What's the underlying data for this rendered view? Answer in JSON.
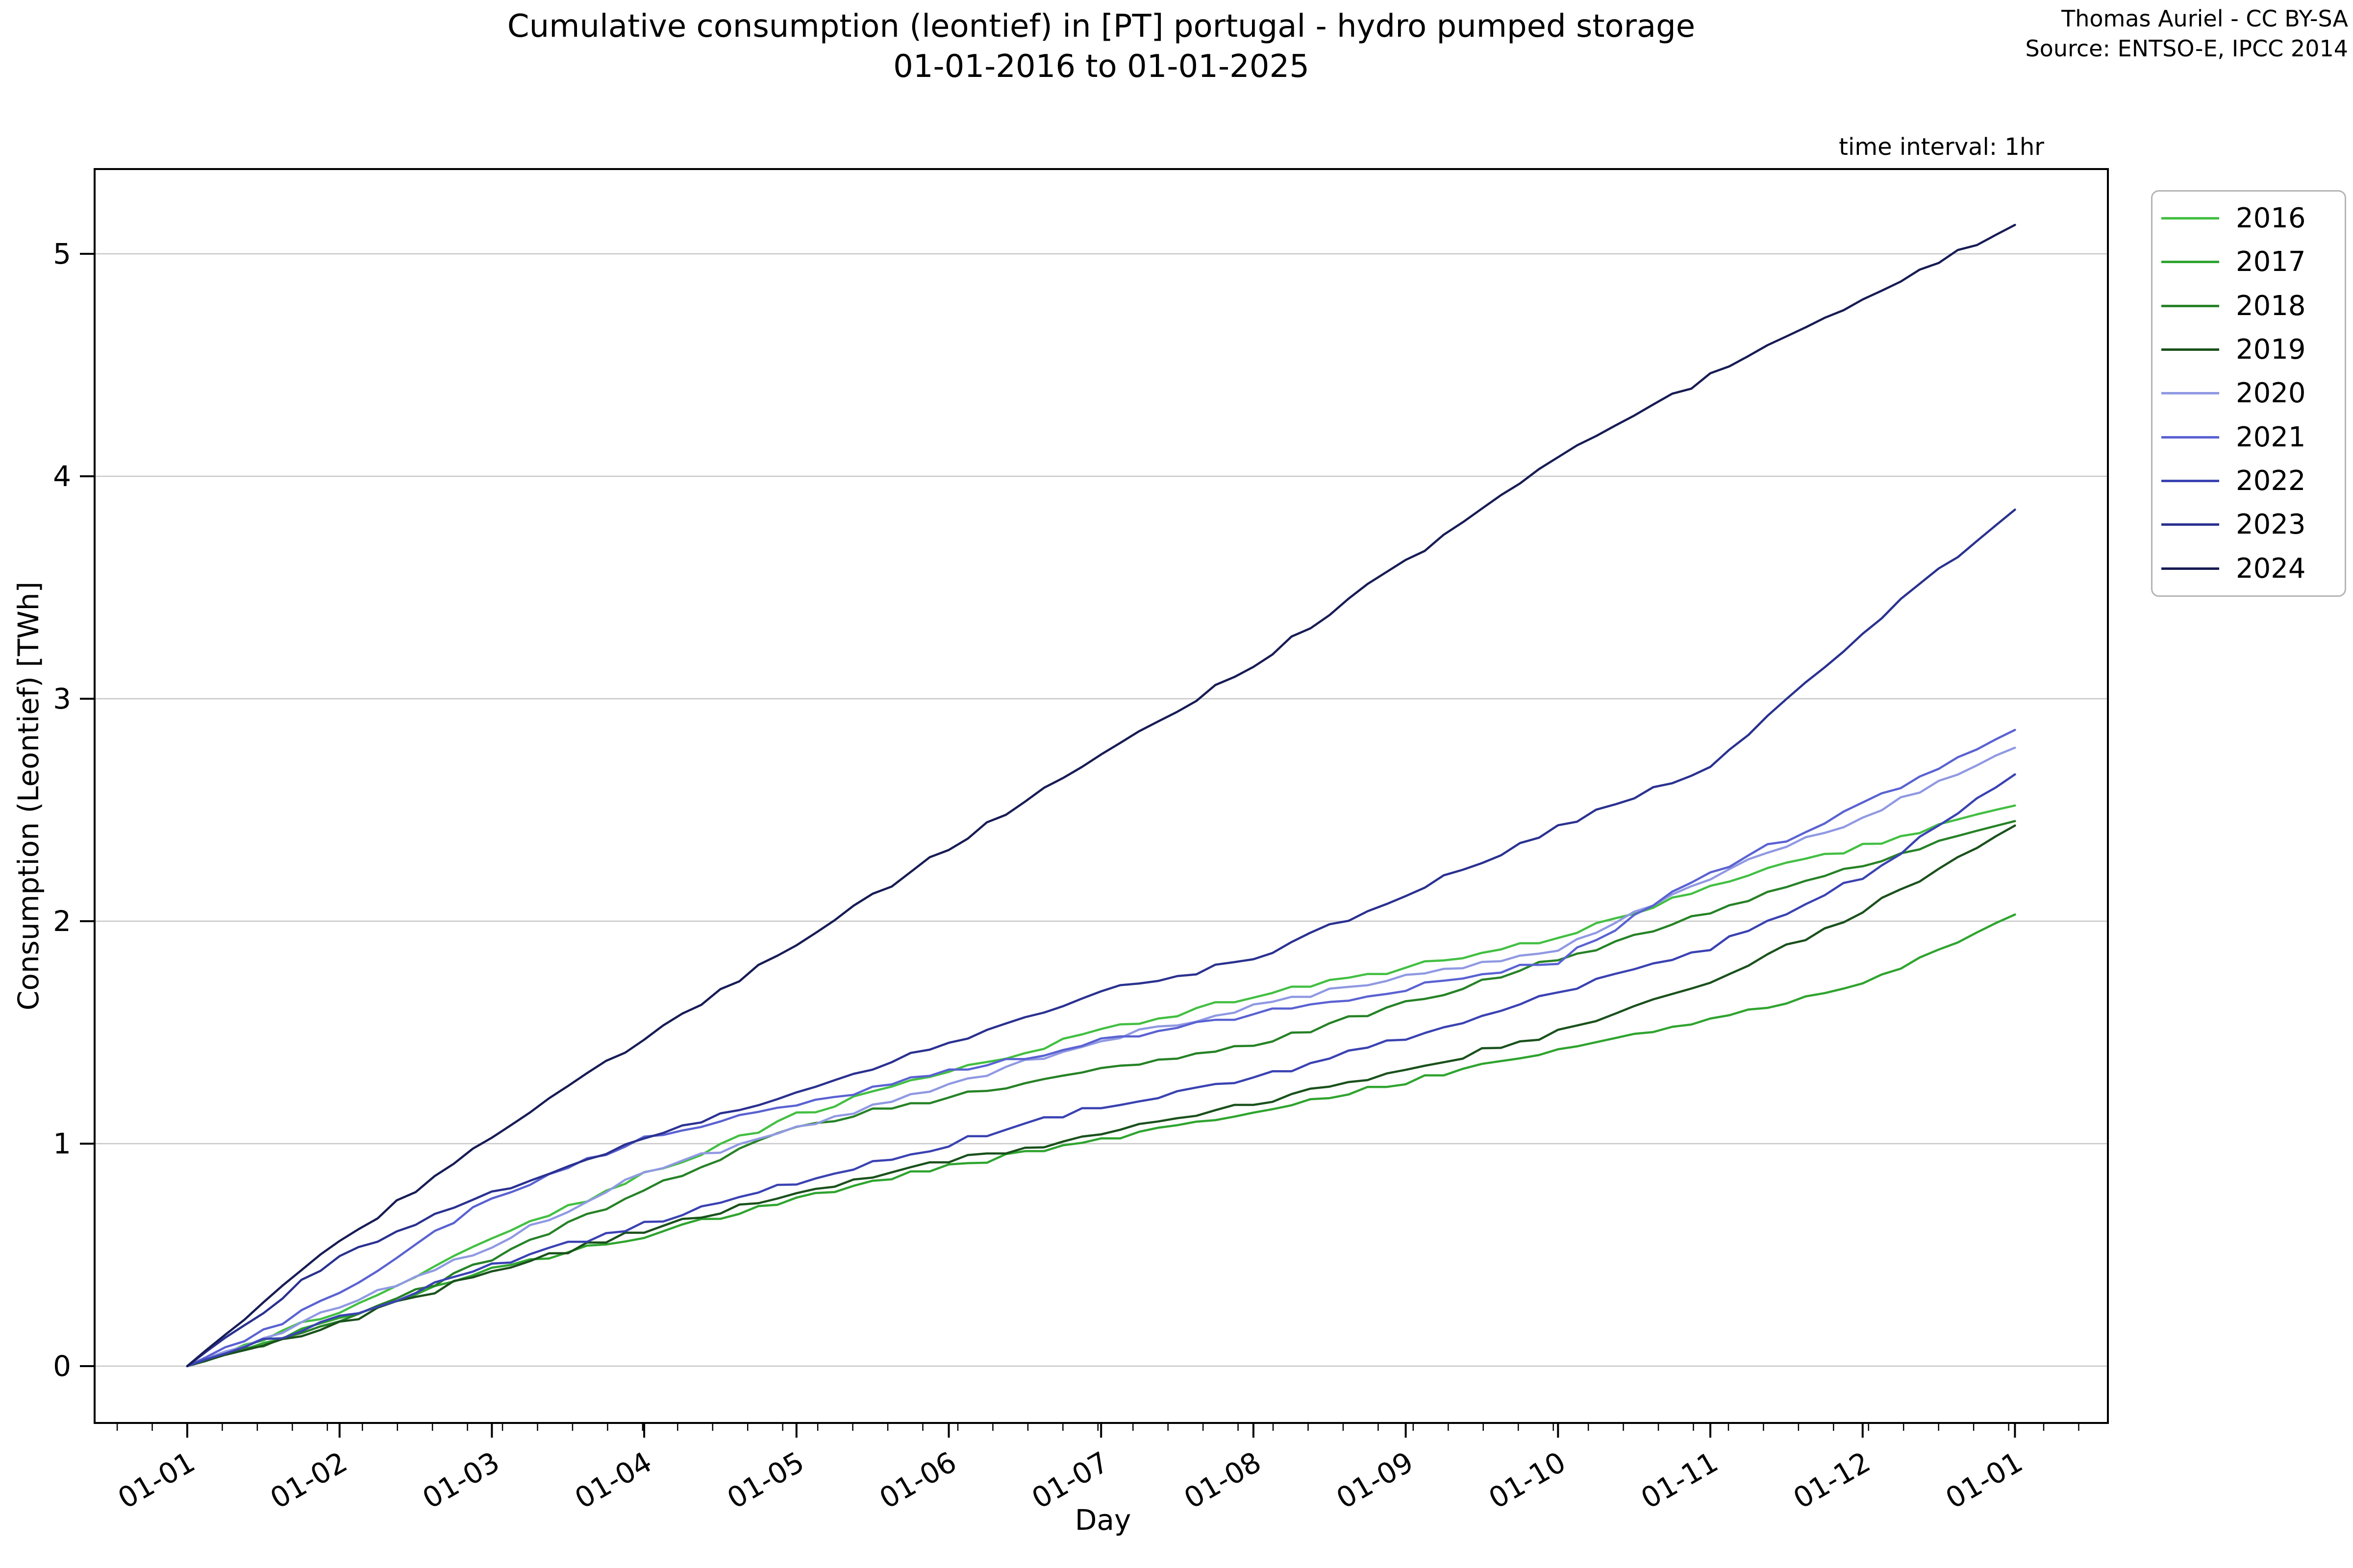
{
  "page": {
    "title_line1": "Cumulative consumption (leontief) in [PT] portugal - hydro pumped storage",
    "title_line2": "01-01-2016 to 01-01-2025",
    "attribution_line1": "Thomas Auriel - CC BY-SA",
    "attribution_line2": "Source: ENTSO-E, IPCC 2014",
    "axes_title_right": "time interval: 1hr"
  },
  "chart_data": {
    "type": "line",
    "title": "Cumulative consumption (leontief) in [PT] portugal - hydro pumped storage 01-01-2016 to 01-01-2025",
    "xlabel": "Day",
    "ylabel": "Consumption (Leontief) [TWh]",
    "x_tick_labels": [
      "01-01",
      "01-02",
      "01-03",
      "01-04",
      "01-05",
      "01-06",
      "01-07",
      "01-08",
      "01-09",
      "01-10",
      "01-11",
      "01-12",
      "01-01"
    ],
    "y_tick_labels": [
      "0",
      "1",
      "2",
      "3",
      "4",
      "5"
    ],
    "x_months": [
      0,
      1,
      2,
      3,
      4,
      5,
      6,
      7,
      8,
      9,
      10,
      11,
      12
    ],
    "ylim": [
      -0.26,
      5.38
    ],
    "grid": "horizontal",
    "gridline_color": "#c8c8c8",
    "legend_position": "outside upper right",
    "time_interval": "1hr",
    "series": [
      {
        "name": "2016",
        "color": "#43bf43",
        "values": [
          0,
          0.25,
          0.57,
          0.86,
          1.13,
          1.32,
          1.51,
          1.66,
          1.79,
          1.92,
          2.16,
          2.34,
          2.52
        ]
      },
      {
        "name": "2017",
        "color": "#2fa42f",
        "values": [
          0,
          0.21,
          0.44,
          0.59,
          0.76,
          0.9,
          1.01,
          1.15,
          1.28,
          1.42,
          1.56,
          1.72,
          2.03
        ]
      },
      {
        "name": "2018",
        "color": "#268226",
        "values": [
          0,
          0.2,
          0.48,
          0.79,
          1.08,
          1.21,
          1.33,
          1.44,
          1.63,
          1.83,
          2.04,
          2.25,
          2.45
        ]
      },
      {
        "name": "2019",
        "color": "#1a511c",
        "values": [
          0,
          0.19,
          0.43,
          0.61,
          0.78,
          0.92,
          1.04,
          1.18,
          1.33,
          1.5,
          1.72,
          2.05,
          2.43
        ]
      },
      {
        "name": "2020",
        "color": "#9099e2",
        "values": [
          0,
          0.26,
          0.54,
          0.87,
          1.07,
          1.27,
          1.46,
          1.62,
          1.75,
          1.88,
          2.2,
          2.47,
          2.78
        ]
      },
      {
        "name": "2021",
        "color": "#5a62d2",
        "values": [
          0,
          0.32,
          0.76,
          1.02,
          1.18,
          1.32,
          1.46,
          1.58,
          1.7,
          1.82,
          2.22,
          2.52,
          2.86
        ]
      },
      {
        "name": "2022",
        "color": "#3a42b2",
        "values": [
          0,
          0.22,
          0.45,
          0.64,
          0.83,
          1.0,
          1.17,
          1.29,
          1.48,
          1.68,
          1.88,
          2.2,
          2.66
        ]
      },
      {
        "name": "2023",
        "color": "#2a3190",
        "values": [
          0,
          0.5,
          0.78,
          1.02,
          1.24,
          1.45,
          1.68,
          1.83,
          2.12,
          2.42,
          2.7,
          3.3,
          3.85
        ]
      },
      {
        "name": "2024",
        "color": "#171c55",
        "values": [
          0,
          0.56,
          1.03,
          1.47,
          1.9,
          2.33,
          2.75,
          3.15,
          3.62,
          4.08,
          4.45,
          4.8,
          5.13
        ]
      }
    ]
  }
}
